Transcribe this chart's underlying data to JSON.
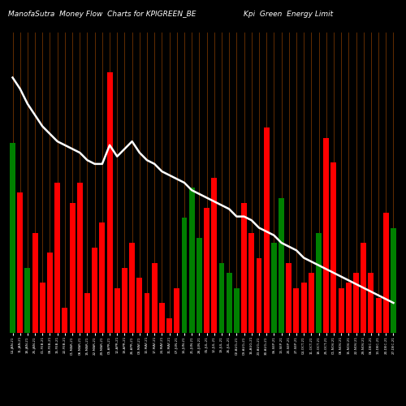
{
  "title_left": "ManofaSutra  Money Flow  Charts for KPIGREEN_BE",
  "title_right": "Kpi  Green  Energy Limit",
  "bg_color": "#000000",
  "bar_colors": [
    "green",
    "red",
    "green",
    "red",
    "red",
    "red",
    "red",
    "red",
    "red",
    "red",
    "red",
    "red",
    "red",
    "red",
    "red",
    "red",
    "red",
    "red",
    "red",
    "red",
    "red",
    "red",
    "red",
    "green",
    "green",
    "green",
    "red",
    "red",
    "green",
    "green",
    "green",
    "red",
    "red",
    "red",
    "red",
    "green",
    "green",
    "red",
    "red",
    "red",
    "red",
    "green",
    "red",
    "red",
    "red",
    "red",
    "red",
    "red",
    "red",
    "red",
    "red",
    "green"
  ],
  "bar_values": [
    38,
    28,
    13,
    20,
    10,
    16,
    30,
    5,
    26,
    30,
    8,
    17,
    22,
    52,
    9,
    13,
    18,
    11,
    8,
    14,
    6,
    3,
    9,
    23,
    29,
    19,
    25,
    31,
    14,
    12,
    9,
    26,
    20,
    15,
    41,
    18,
    27,
    14,
    9,
    10,
    12,
    20,
    39,
    34,
    9,
    10,
    12,
    18,
    12,
    7,
    24,
    21
  ],
  "line_values": [
    88,
    85,
    81,
    78,
    75,
    73,
    71,
    70,
    69,
    68,
    66,
    65,
    65,
    70,
    67,
    69,
    71,
    68,
    66,
    65,
    63,
    62,
    61,
    60,
    58,
    57,
    56,
    55,
    54,
    53,
    51,
    51,
    50,
    48,
    47,
    46,
    44,
    43,
    42,
    40,
    39,
    38,
    37,
    36,
    35,
    34,
    33,
    32,
    31,
    30,
    29,
    28
  ],
  "x_labels": [
    "04-JAN-21",
    "11-JAN-21",
    "18-JAN-21",
    "25-JAN-21",
    "01-FEB-21",
    "08-FEB-21",
    "15-FEB-21",
    "22-FEB-21",
    "01-MAR-21",
    "08-MAR-21",
    "15-MAR-21",
    "22-MAR-21",
    "29-MAR-21",
    "05-APR-21",
    "12-APR-21",
    "19-APR-21",
    "26-APR-21",
    "03-MAY-21",
    "10-MAY-21",
    "17-MAY-21",
    "24-MAY-21",
    "31-MAY-21",
    "07-JUN-21",
    "14-JUN-21",
    "21-JUN-21",
    "28-JUN-21",
    "05-JUL-21",
    "12-JUL-21",
    "19-JUL-21",
    "26-JUL-21",
    "02-AUG-21",
    "09-AUG-21",
    "16-AUG-21",
    "23-AUG-21",
    "30-AUG-21",
    "06-SEP-21",
    "13-SEP-21",
    "20-SEP-21",
    "27-SEP-21",
    "04-OCT-21",
    "11-OCT-21",
    "18-OCT-21",
    "25-OCT-21",
    "01-NOV-21",
    "08-NOV-21",
    "15-NOV-21",
    "22-NOV-21",
    "29-NOV-21",
    "06-DEC-21",
    "13-DEC-21",
    "20-DEC-21",
    "27-DEC-21"
  ],
  "grid_color": "#7B3800",
  "line_color": "#ffffff",
  "title_color": "#ffffff",
  "title_fontsize": 6.5,
  "bar_width": 0.75,
  "line_width": 1.8,
  "n_bars": 52,
  "bar_ylim": [
    0,
    60
  ],
  "line_ylim": [
    20,
    100
  ]
}
